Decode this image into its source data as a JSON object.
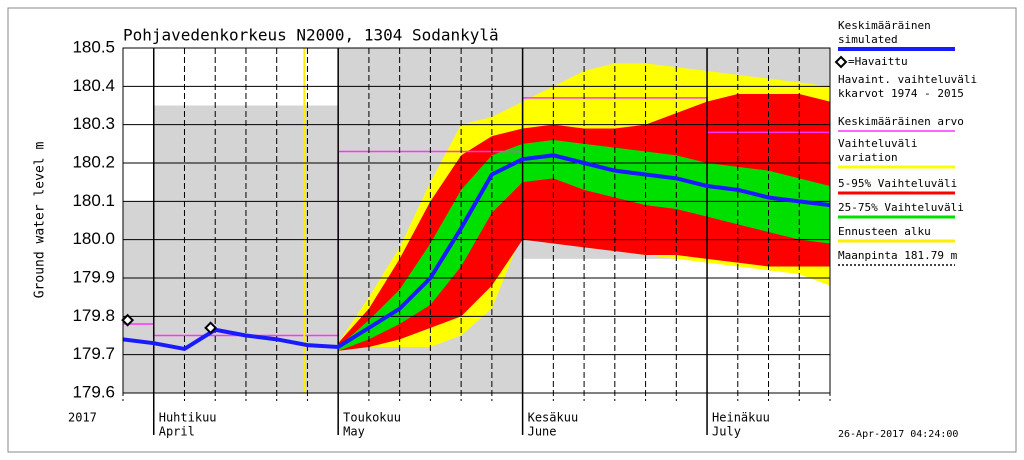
{
  "chart_data": {
    "type": "band",
    "title": "Pohjavedenkorkeus N2000, 1304 Sodankylä",
    "y_label": "Ground water level m",
    "year_label": "2017",
    "timestamp": "26-Apr-2017 04:24:00",
    "categories": [
      null,
      "Huhtikuu",
      null,
      null,
      null,
      null,
      null,
      "Toukokuu",
      null,
      null,
      null,
      null,
      null,
      "Kesäkuu",
      null,
      null,
      null,
      null,
      null,
      "Heinäkuu",
      null,
      null,
      null,
      null
    ],
    "categories_en": [
      null,
      "April",
      null,
      null,
      null,
      null,
      null,
      "May",
      null,
      null,
      null,
      null,
      null,
      "June",
      null,
      null,
      null,
      null,
      null,
      "July",
      null,
      null,
      null,
      null
    ],
    "ylim": [
      179.6,
      180.5
    ],
    "yticks": [
      179.6,
      179.7,
      179.8,
      179.9,
      {
        "value": 180,
        "label": "180.0"
      },
      180.1,
      180.2,
      180.3,
      180.4,
      180.5
    ],
    "grid": true,
    "series": [
      {
        "name": [
          "Keskimääräinen",
          "simulated"
        ],
        "kind": "line",
        "color": "#1a1aff",
        "values": [
          179.74,
          179.73,
          179.715,
          179.765,
          179.75,
          179.74,
          179.725,
          179.72,
          179.77,
          179.82,
          179.9,
          180.03,
          180.17,
          180.21,
          180.22,
          180.2,
          180.18,
          180.17,
          180.16,
          180.14,
          180.13,
          180.11,
          180.1,
          180.09
        ]
      },
      {
        "name": [
          "=Havaittu"
        ],
        "kind": "points",
        "color": "#000000",
        "x": [
          0.15,
          2.85
        ],
        "values": [
          179.79,
          179.77
        ]
      },
      {
        "name": [
          "Havaint. vaihteluväli",
          "kkarvot 1974 - 2015"
        ],
        "kind": "shade",
        "color": "#d4d4d4",
        "low": [
          179.6,
          179.6,
          179.6,
          179.6,
          179.6,
          179.6,
          179.6,
          179.6,
          179.6,
          179.6,
          179.6,
          179.6,
          179.6,
          179.95,
          179.95,
          179.95,
          179.95,
          179.95,
          179.95,
          179.95,
          179.95,
          179.95,
          179.95,
          179.95
        ],
        "high": [
          180.1,
          180.35,
          180.35,
          180.35,
          180.35,
          180.35,
          180.35,
          180.5,
          180.5,
          180.5,
          180.5,
          180.5,
          180.5,
          180.5,
          180.5,
          180.5,
          180.5,
          180.5,
          180.5,
          180.5,
          180.5,
          180.5,
          180.5,
          180.5
        ]
      },
      {
        "name": [
          "Keskimääräinen arvo"
        ],
        "kind": "step",
        "color": "#ff33ff",
        "values": [
          179.78,
          179.75,
          179.75,
          179.75,
          179.75,
          179.75,
          179.75,
          180.23,
          180.23,
          180.23,
          180.23,
          180.23,
          180.23,
          180.37,
          180.37,
          180.37,
          180.37,
          180.37,
          180.37,
          180.28,
          180.28,
          180.28,
          180.28,
          180.28
        ]
      },
      {
        "name": [
          "Vaihteluväli",
          "variation"
        ],
        "kind": "band",
        "color": "#ffff00",
        "low": [
          null,
          null,
          null,
          null,
          null,
          null,
          null,
          179.71,
          179.72,
          179.72,
          179.72,
          179.75,
          179.82,
          180.02,
          180.01,
          179.98,
          179.97,
          179.96,
          179.95,
          179.94,
          179.93,
          179.92,
          179.91,
          179.88
        ],
        "high": [
          null,
          null,
          null,
          null,
          null,
          null,
          null,
          179.73,
          179.85,
          179.98,
          180.15,
          180.3,
          180.32,
          180.36,
          180.4,
          180.44,
          180.46,
          180.46,
          180.45,
          180.44,
          180.43,
          180.42,
          180.41,
          180.4
        ]
      },
      {
        "name": [
          "5-95% Vaihteluväli"
        ],
        "kind": "band",
        "color": "#ff0000",
        "low": [
          null,
          null,
          null,
          null,
          null,
          null,
          null,
          179.71,
          179.72,
          179.74,
          179.77,
          179.8,
          179.88,
          180.0,
          179.99,
          179.98,
          179.97,
          179.96,
          179.96,
          179.95,
          179.94,
          179.93,
          179.93,
          179.93
        ],
        "high": [
          null,
          null,
          null,
          null,
          null,
          null,
          null,
          179.73,
          179.82,
          179.95,
          180.1,
          180.22,
          180.27,
          180.29,
          180.3,
          180.29,
          180.29,
          180.3,
          180.33,
          180.36,
          180.38,
          180.38,
          180.38,
          180.36
        ]
      },
      {
        "name": [
          "25-75% Vaihteluväli"
        ],
        "kind": "band",
        "color": "#00e000",
        "low": [
          null,
          null,
          null,
          null,
          null,
          null,
          null,
          179.71,
          179.74,
          179.78,
          179.83,
          179.93,
          180.07,
          180.15,
          180.16,
          180.13,
          180.11,
          180.09,
          180.08,
          180.06,
          180.04,
          180.02,
          180.0,
          179.99
        ],
        "high": [
          null,
          null,
          null,
          null,
          null,
          null,
          null,
          179.72,
          179.79,
          179.87,
          179.99,
          180.13,
          180.22,
          180.25,
          180.26,
          180.25,
          180.24,
          180.23,
          180.22,
          180.2,
          180.19,
          180.18,
          180.16,
          180.14
        ]
      },
      {
        "name": [
          "Ennusteen alku"
        ],
        "kind": "vline",
        "color": "#ffee00",
        "x": 5.9
      },
      {
        "name": [
          "Maanpinta 181.79 m"
        ],
        "kind": "reference",
        "color": "#000000"
      }
    ]
  }
}
